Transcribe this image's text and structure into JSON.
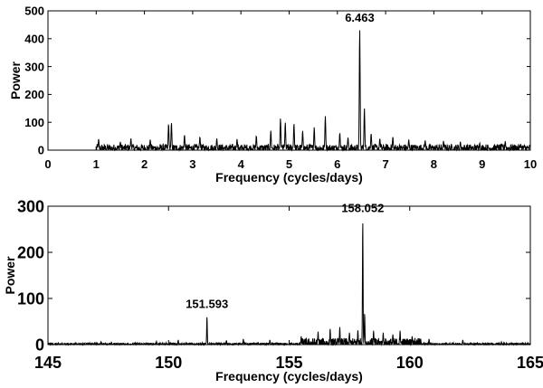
{
  "chart_data": [
    {
      "type": "line",
      "xlabel": "Frequency (cycles/days)",
      "ylabel": "Power",
      "xlim": [
        0,
        10
      ],
      "ylim": [
        0,
        500
      ],
      "xticks": [
        0,
        1,
        2,
        3,
        4,
        5,
        6,
        7,
        8,
        9,
        10
      ],
      "yticks": [
        0,
        100,
        200,
        300,
        400,
        500
      ],
      "grid": false,
      "annotations": [
        {
          "text": "6.463",
          "x": 6.463,
          "y": 435
        }
      ],
      "peaks": [
        {
          "x": 1.05,
          "y": 40
        },
        {
          "x": 1.5,
          "y": 30
        },
        {
          "x": 1.72,
          "y": 42
        },
        {
          "x": 2.12,
          "y": 38
        },
        {
          "x": 2.5,
          "y": 95
        },
        {
          "x": 2.56,
          "y": 100
        },
        {
          "x": 2.83,
          "y": 55
        },
        {
          "x": 3.15,
          "y": 48
        },
        {
          "x": 3.5,
          "y": 42
        },
        {
          "x": 3.92,
          "y": 40
        },
        {
          "x": 4.32,
          "y": 52
        },
        {
          "x": 4.62,
          "y": 70
        },
        {
          "x": 4.82,
          "y": 115
        },
        {
          "x": 4.92,
          "y": 100
        },
        {
          "x": 5.1,
          "y": 95
        },
        {
          "x": 5.28,
          "y": 70
        },
        {
          "x": 5.52,
          "y": 82
        },
        {
          "x": 5.75,
          "y": 122
        },
        {
          "x": 6.05,
          "y": 62
        },
        {
          "x": 6.22,
          "y": 45
        },
        {
          "x": 6.463,
          "y": 435
        },
        {
          "x": 6.56,
          "y": 150
        },
        {
          "x": 6.7,
          "y": 60
        },
        {
          "x": 6.88,
          "y": 42
        },
        {
          "x": 7.15,
          "y": 48
        },
        {
          "x": 7.48,
          "y": 38
        },
        {
          "x": 7.82,
          "y": 35
        },
        {
          "x": 8.2,
          "y": 33
        },
        {
          "x": 8.55,
          "y": 30
        },
        {
          "x": 8.95,
          "y": 26
        },
        {
          "x": 9.48,
          "y": 32
        },
        {
          "x": 9.8,
          "y": 22
        }
      ]
    },
    {
      "type": "line",
      "xlabel": "Frequency (cycles/days)",
      "ylabel": "Power",
      "xlim": [
        145,
        165
      ],
      "ylim": [
        0,
        300
      ],
      "xticks": [
        145,
        150,
        155,
        160,
        165
      ],
      "yticks": [
        0,
        100,
        200,
        300
      ],
      "grid": false,
      "annotations": [
        {
          "text": "151.593",
          "x": 151.593,
          "y": 60
        },
        {
          "x": 158.052,
          "text": "158.052",
          "y": 268
        }
      ],
      "peaks": [
        {
          "x": 147.2,
          "y": 6
        },
        {
          "x": 149.5,
          "y": 7
        },
        {
          "x": 150.4,
          "y": 10
        },
        {
          "x": 151.593,
          "y": 60
        },
        {
          "x": 152.4,
          "y": 9
        },
        {
          "x": 153.1,
          "y": 12
        },
        {
          "x": 154.2,
          "y": 10
        },
        {
          "x": 155.5,
          "y": 18
        },
        {
          "x": 156.2,
          "y": 28
        },
        {
          "x": 156.7,
          "y": 34
        },
        {
          "x": 157.1,
          "y": 38
        },
        {
          "x": 157.5,
          "y": 26
        },
        {
          "x": 157.85,
          "y": 32
        },
        {
          "x": 158.052,
          "y": 268
        },
        {
          "x": 158.13,
          "y": 68
        },
        {
          "x": 158.5,
          "y": 30
        },
        {
          "x": 158.9,
          "y": 26
        },
        {
          "x": 159.3,
          "y": 22
        },
        {
          "x": 159.6,
          "y": 30
        },
        {
          "x": 160.1,
          "y": 18
        },
        {
          "x": 160.8,
          "y": 12
        },
        {
          "x": 162.2,
          "y": 10
        },
        {
          "x": 163.8,
          "y": 6
        }
      ]
    }
  ]
}
